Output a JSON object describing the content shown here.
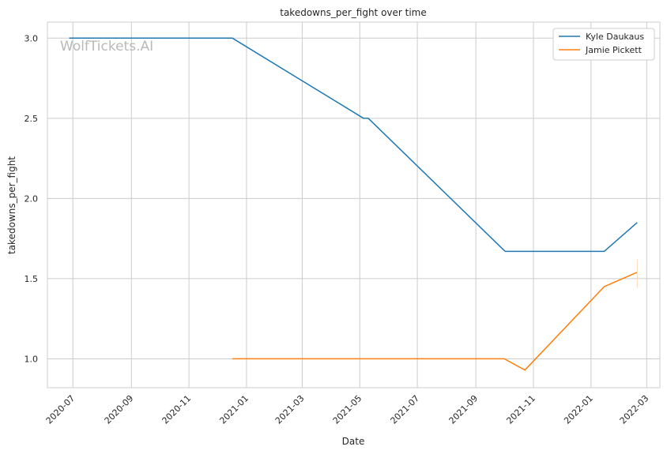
{
  "chart_data": {
    "type": "line",
    "title": "takedowns_per_fight over time",
    "xlabel": "Date",
    "ylabel": "takedowns_per_fight",
    "watermark": "WolfTickets.AI",
    "x_ticks": [
      "2020-07",
      "2020-09",
      "2020-11",
      "2021-01",
      "2021-03",
      "2021-05",
      "2021-07",
      "2021-09",
      "2021-11",
      "2022-01",
      "2022-03"
    ],
    "y_ticks": [
      "1.0",
      "1.5",
      "2.0",
      "2.5",
      "3.0"
    ],
    "xlim": [
      "2020-06-04",
      "2022-03-15"
    ],
    "ylim": [
      0.82,
      3.1
    ],
    "grid": true,
    "legend_position": "top-right",
    "series": [
      {
        "name": "Kyle Daukaus",
        "color": "#1f77b4",
        "points": [
          {
            "x": "2020-06-27",
            "y": 3.0
          },
          {
            "x": "2020-12-17",
            "y": 3.0
          },
          {
            "x": "2021-05-05",
            "y": 2.5
          },
          {
            "x": "2021-05-10",
            "y": 2.5
          },
          {
            "x": "2021-10-02",
            "y": 1.67
          },
          {
            "x": "2022-01-15",
            "y": 1.67
          },
          {
            "x": "2022-02-19",
            "y": 1.85
          }
        ]
      },
      {
        "name": "Jamie Pickett",
        "color": "#ff7f0e",
        "points": [
          {
            "x": "2020-12-17",
            "y": 1.0
          },
          {
            "x": "2021-10-01",
            "y": 1.0
          },
          {
            "x": "2021-10-23",
            "y": 0.93
          },
          {
            "x": "2022-01-15",
            "y": 1.45
          },
          {
            "x": "2022-02-19",
            "y": 1.54
          }
        ]
      }
    ]
  }
}
